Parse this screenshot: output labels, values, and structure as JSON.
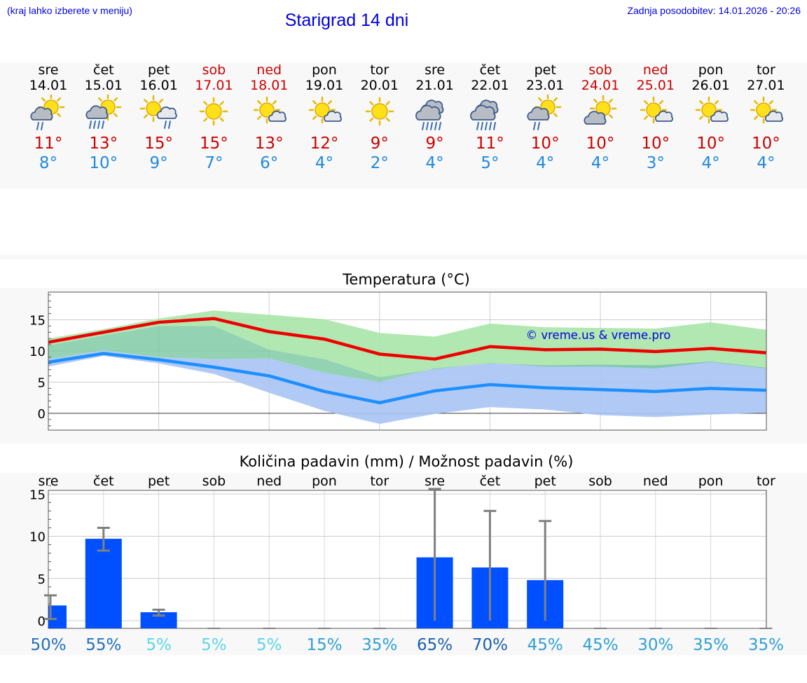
{
  "header": {
    "hint": "(kraj lahko izberete v meniju)",
    "title": "Starigrad 14 dni",
    "updated": "Zadnja posodobitev: 14.01.2026 - 20:26"
  },
  "days": [
    {
      "name": "sre",
      "date": "14.01",
      "weekend": false,
      "icon": "sun-cloud-light-rain",
      "hi": "11°",
      "lo": "8°"
    },
    {
      "name": "čet",
      "date": "15.01",
      "weekend": false,
      "icon": "sun-cloud-rain",
      "hi": "13°",
      "lo": "10°"
    },
    {
      "name": "pet",
      "date": "16.01",
      "weekend": false,
      "icon": "sun-cloud-light-rain-right",
      "hi": "15°",
      "lo": "9°"
    },
    {
      "name": "sob",
      "date": "17.01",
      "weekend": true,
      "icon": "sun",
      "hi": "15°",
      "lo": "7°"
    },
    {
      "name": "ned",
      "date": "18.01",
      "weekend": true,
      "icon": "sun-small-cloud",
      "hi": "13°",
      "lo": "6°"
    },
    {
      "name": "pon",
      "date": "19.01",
      "weekend": false,
      "icon": "sun-small-cloud",
      "hi": "12°",
      "lo": "4°"
    },
    {
      "name": "tor",
      "date": "20.01",
      "weekend": false,
      "icon": "sun",
      "hi": "9°",
      "lo": "2°"
    },
    {
      "name": "sre",
      "date": "21.01",
      "weekend": false,
      "icon": "clouds-rain",
      "hi": "9°",
      "lo": "4°"
    },
    {
      "name": "čet",
      "date": "22.01",
      "weekend": false,
      "icon": "clouds-rain",
      "hi": "11°",
      "lo": "5°"
    },
    {
      "name": "pet",
      "date": "23.01",
      "weekend": false,
      "icon": "sun-cloud-light-rain",
      "hi": "10°",
      "lo": "4°"
    },
    {
      "name": "sob",
      "date": "24.01",
      "weekend": true,
      "icon": "sun-cloud",
      "hi": "10°",
      "lo": "4°"
    },
    {
      "name": "ned",
      "date": "25.01",
      "weekend": true,
      "icon": "sun-small-cloud",
      "hi": "10°",
      "lo": "3°"
    },
    {
      "name": "pon",
      "date": "26.01",
      "weekend": false,
      "icon": "sun-small-cloud",
      "hi": "10°",
      "lo": "4°"
    },
    {
      "name": "tor",
      "date": "27.01",
      "weekend": false,
      "icon": "sun-small-cloud",
      "hi": "10°",
      "lo": "4°"
    }
  ],
  "colors": {
    "link": "#0000dd",
    "weekend": "#cc0000",
    "hi": "#cc0000",
    "lo": "#2288dd",
    "max_line": "#ee0000",
    "max_band": "#a8e6a8",
    "min_line": "#1e8fff",
    "min_band": "#a8c4f4",
    "overlap_band": "#78c8a0",
    "precip_bar": "#0050ff",
    "errorbar": "#808080"
  },
  "chart_data": [
    {
      "type": "line",
      "title": "Temperatura (°C)",
      "watermark": "© vreme.us & vreme.pro",
      "x": [
        "14.01",
        "15.01",
        "16.01",
        "17.01",
        "18.01",
        "19.01",
        "20.01",
        "21.01",
        "22.01",
        "23.01",
        "24.01",
        "25.01",
        "26.01",
        "27.01"
      ],
      "yticks": [
        "0",
        "5",
        "10",
        "15"
      ],
      "ylim": [
        -2.5,
        19.5
      ],
      "grid": true,
      "series": [
        {
          "name": "max",
          "values": [
            11.4,
            13.0,
            14.6,
            15.2,
            13.1,
            11.9,
            9.5,
            8.7,
            10.7,
            10.2,
            10.3,
            9.9,
            10.4,
            9.7
          ],
          "band_low": [
            10.9,
            12.5,
            14.0,
            14.0,
            10.2,
            8.7,
            5.8,
            7.1,
            8.1,
            7.5,
            7.5,
            7.2,
            8.2,
            7.2
          ],
          "band_high": [
            12.0,
            13.5,
            15.2,
            16.5,
            15.8,
            15.1,
            12.9,
            12.3,
            14.4,
            13.8,
            13.7,
            13.6,
            14.6,
            13.4
          ]
        },
        {
          "name": "min",
          "values": [
            8.2,
            9.6,
            8.6,
            7.4,
            6.0,
            3.5,
            1.7,
            3.6,
            4.6,
            4.1,
            3.8,
            3.5,
            4.0,
            3.7
          ],
          "band_low": [
            7.5,
            9.2,
            8.0,
            6.3,
            3.3,
            0.4,
            -1.7,
            -0.1,
            1.0,
            0.6,
            -0.3,
            -0.6,
            -0.2,
            0.1
          ],
          "band_high": [
            8.7,
            10.1,
            9.0,
            8.7,
            8.8,
            6.5,
            5.0,
            7.2,
            8.0,
            7.7,
            7.8,
            7.7,
            8.3,
            7.3
          ]
        }
      ]
    },
    {
      "type": "bar",
      "title": "Količina padavin (mm) / Možnost padavin (%)",
      "categories": [
        "sre",
        "čet",
        "pet",
        "sob",
        "ned",
        "pon",
        "tor",
        "sre",
        "čet",
        "pet",
        "sob",
        "ned",
        "pon",
        "tor"
      ],
      "values": [
        1.8,
        9.7,
        1.0,
        0,
        0,
        0,
        0,
        7.5,
        6.3,
        4.8,
        0,
        0,
        0,
        0
      ],
      "err_low": [
        0.2,
        8.3,
        0.6,
        0,
        0,
        0,
        0,
        0,
        0,
        0,
        0,
        0,
        0,
        0
      ],
      "err_high": [
        3.0,
        11.0,
        1.3,
        0,
        0,
        0,
        0,
        15.6,
        13.0,
        11.8,
        0,
        0,
        0,
        0
      ],
      "yticks": [
        "0",
        "5",
        "10",
        "15"
      ],
      "ylim": [
        -0.8,
        16.5
      ],
      "probability": [
        "50%",
        "55%",
        "5%",
        "5%",
        "5%",
        "15%",
        "35%",
        "65%",
        "70%",
        "45%",
        "45%",
        "30%",
        "35%",
        "35%"
      ],
      "probability_colors": [
        "#1f6fbf",
        "#1f6fbf",
        "#5ad6e6",
        "#5ad6e6",
        "#5ad6e6",
        "#2fa0d6",
        "#2fa0d6",
        "#1a5fb0",
        "#1a5fb0",
        "#2fa0d6",
        "#2fa0d6",
        "#2fa0d6",
        "#2fa0d6",
        "#2fa0d6"
      ]
    }
  ]
}
